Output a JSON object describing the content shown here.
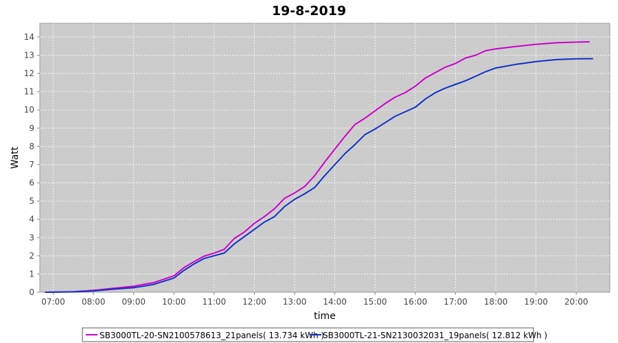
{
  "chart_data": {
    "type": "line",
    "title": "19-8-2019",
    "xlabel": "time",
    "ylabel": "Watt",
    "x_ticks": [
      "07:00",
      "08:00",
      "09:00",
      "10:00",
      "11:00",
      "12:00",
      "13:00",
      "14:00",
      "15:00",
      "16:00",
      "17:00",
      "18:00",
      "19:00",
      "20:00"
    ],
    "xlim": [
      "06:40",
      "20:50"
    ],
    "ylim": [
      0,
      14.75
    ],
    "y_ticks": [
      0,
      1,
      2,
      3,
      4,
      5,
      6,
      7,
      8,
      9,
      10,
      11,
      12,
      13,
      14
    ],
    "grid": true,
    "legend_position": "bottom",
    "series": [
      {
        "name": "SB3000TL-20-SN2100578613_21panels( 13.734 kWh )",
        "color": "#cc00cc",
        "x": [
          "06:48",
          "07:30",
          "08:00",
          "08:30",
          "09:00",
          "09:30",
          "10:00",
          "10:15",
          "10:30",
          "10:45",
          "11:00",
          "11:15",
          "11:30",
          "11:45",
          "12:00",
          "12:15",
          "12:30",
          "12:45",
          "13:00",
          "13:15",
          "13:30",
          "13:45",
          "14:00",
          "14:15",
          "14:30",
          "14:45",
          "15:00",
          "15:15",
          "15:30",
          "15:45",
          "16:00",
          "16:15",
          "16:30",
          "16:45",
          "17:00",
          "17:15",
          "17:30",
          "17:45",
          "18:00",
          "18:30",
          "19:00",
          "19:30",
          "20:00",
          "20:20"
        ],
        "values": [
          0,
          0.03,
          0.1,
          0.22,
          0.33,
          0.53,
          0.9,
          1.35,
          1.68,
          1.98,
          2.15,
          2.35,
          2.95,
          3.3,
          3.78,
          4.15,
          4.58,
          5.15,
          5.45,
          5.8,
          6.4,
          7.15,
          7.85,
          8.55,
          9.2,
          9.55,
          9.95,
          10.35,
          10.7,
          10.95,
          11.3,
          11.75,
          12.05,
          12.35,
          12.55,
          12.85,
          13.0,
          13.25,
          13.35,
          13.48,
          13.6,
          13.68,
          13.72,
          13.734
        ]
      },
      {
        "name": "SB3000TL-21-SN2130032031_19panels( 12.812 kWh )",
        "color": "#1030c8",
        "x": [
          "06:48",
          "07:30",
          "08:00",
          "08:30",
          "09:00",
          "09:30",
          "10:00",
          "10:15",
          "10:30",
          "10:45",
          "11:00",
          "11:15",
          "11:30",
          "11:45",
          "12:00",
          "12:15",
          "12:30",
          "12:45",
          "13:00",
          "13:15",
          "13:30",
          "13:45",
          "14:00",
          "14:15",
          "14:30",
          "14:45",
          "15:00",
          "15:15",
          "15:30",
          "15:45",
          "16:00",
          "16:15",
          "16:30",
          "16:45",
          "17:00",
          "17:15",
          "17:30",
          "17:45",
          "18:00",
          "18:30",
          "19:00",
          "19:30",
          "20:00",
          "20:25"
        ],
        "values": [
          0,
          0.02,
          0.07,
          0.17,
          0.25,
          0.43,
          0.78,
          1.2,
          1.55,
          1.85,
          2.0,
          2.15,
          2.65,
          3.05,
          3.45,
          3.85,
          4.15,
          4.7,
          5.1,
          5.4,
          5.75,
          6.4,
          7.0,
          7.6,
          8.1,
          8.65,
          8.95,
          9.3,
          9.65,
          9.9,
          10.15,
          10.6,
          10.95,
          11.2,
          11.4,
          11.6,
          11.85,
          12.1,
          12.3,
          12.5,
          12.65,
          12.76,
          12.8,
          12.812
        ]
      }
    ]
  }
}
